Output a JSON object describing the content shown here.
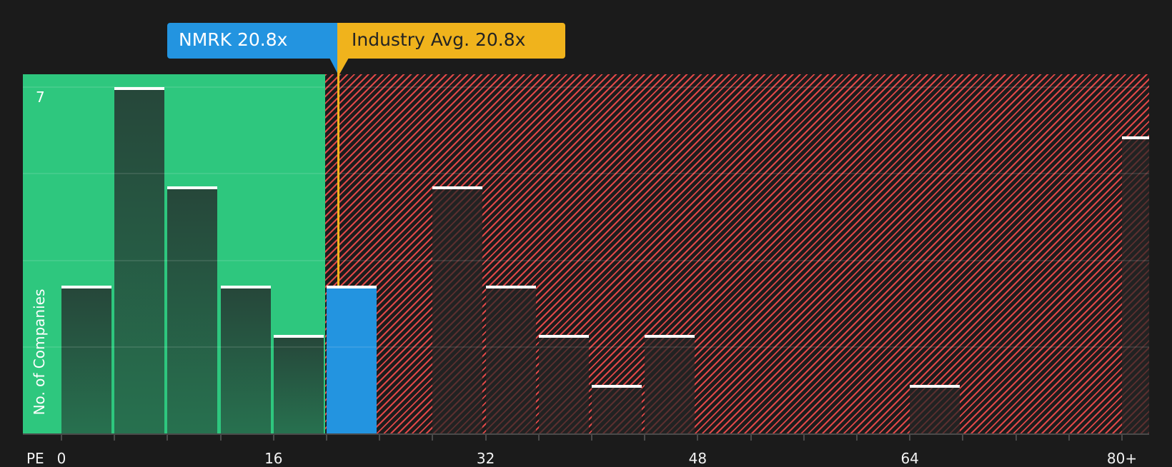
{
  "chart_data": {
    "type": "bar",
    "subtype": "histogram",
    "title": "",
    "xlabel": "PE",
    "ylabel": "No. of Companies",
    "bin_width": 4,
    "categories": [
      "0-4",
      "4-8",
      "8-12",
      "12-16",
      "16-20",
      "20-24",
      "24-28",
      "28-32",
      "32-36",
      "36-40",
      "40-44",
      "44-48",
      "48-52",
      "52-56",
      "56-60",
      "60-64",
      "64-68",
      "68-72",
      "72-76",
      "76-80",
      "80+"
    ],
    "values": [
      3,
      7,
      5,
      3,
      2,
      3,
      0,
      5,
      3,
      2,
      1,
      2,
      0,
      0,
      0,
      0,
      1,
      0,
      0,
      0,
      6
    ],
    "x_ticks": [
      {
        "value": 0,
        "label": "0"
      },
      {
        "value": 16,
        "label": "16"
      },
      {
        "value": 32,
        "label": "32"
      },
      {
        "value": 48,
        "label": "48"
      },
      {
        "value": 64,
        "label": "64"
      },
      {
        "value": 80,
        "label": "80+"
      }
    ],
    "x_minor_tick_step": 4,
    "y_ticks": [
      {
        "value": 7,
        "label": "7"
      }
    ],
    "y_gridlines": [
      1.75,
      3.5,
      5.25,
      7
    ],
    "ylim": [
      0,
      7
    ],
    "xlim": [
      0,
      82
    ],
    "grid": true,
    "legend": null,
    "highlight_bin": 5,
    "annotations": [
      {
        "id": "company",
        "label": "NMRK 20.8x",
        "value": 20.8,
        "color": "#2394e0"
      },
      {
        "id": "industry_avg",
        "label": "Industry Avg. 20.8x",
        "value": 20.8,
        "color": "#f0b31c"
      }
    ],
    "regions": [
      {
        "name": "below-industry-average",
        "from": 0,
        "to": 20,
        "color": "#2ec77e",
        "pattern": "solid"
      },
      {
        "name": "above-industry-average",
        "from": 20,
        "to": "80+",
        "color": "#e04848",
        "pattern": "hatched"
      }
    ]
  },
  "colors": {
    "background": "#1b1b1b",
    "green_region": "#2ec77e",
    "red_hatch": "#e04848",
    "company_bar": "#2394e0",
    "industry_line": "#f0b31c",
    "bar_cap": "#ffffff"
  }
}
